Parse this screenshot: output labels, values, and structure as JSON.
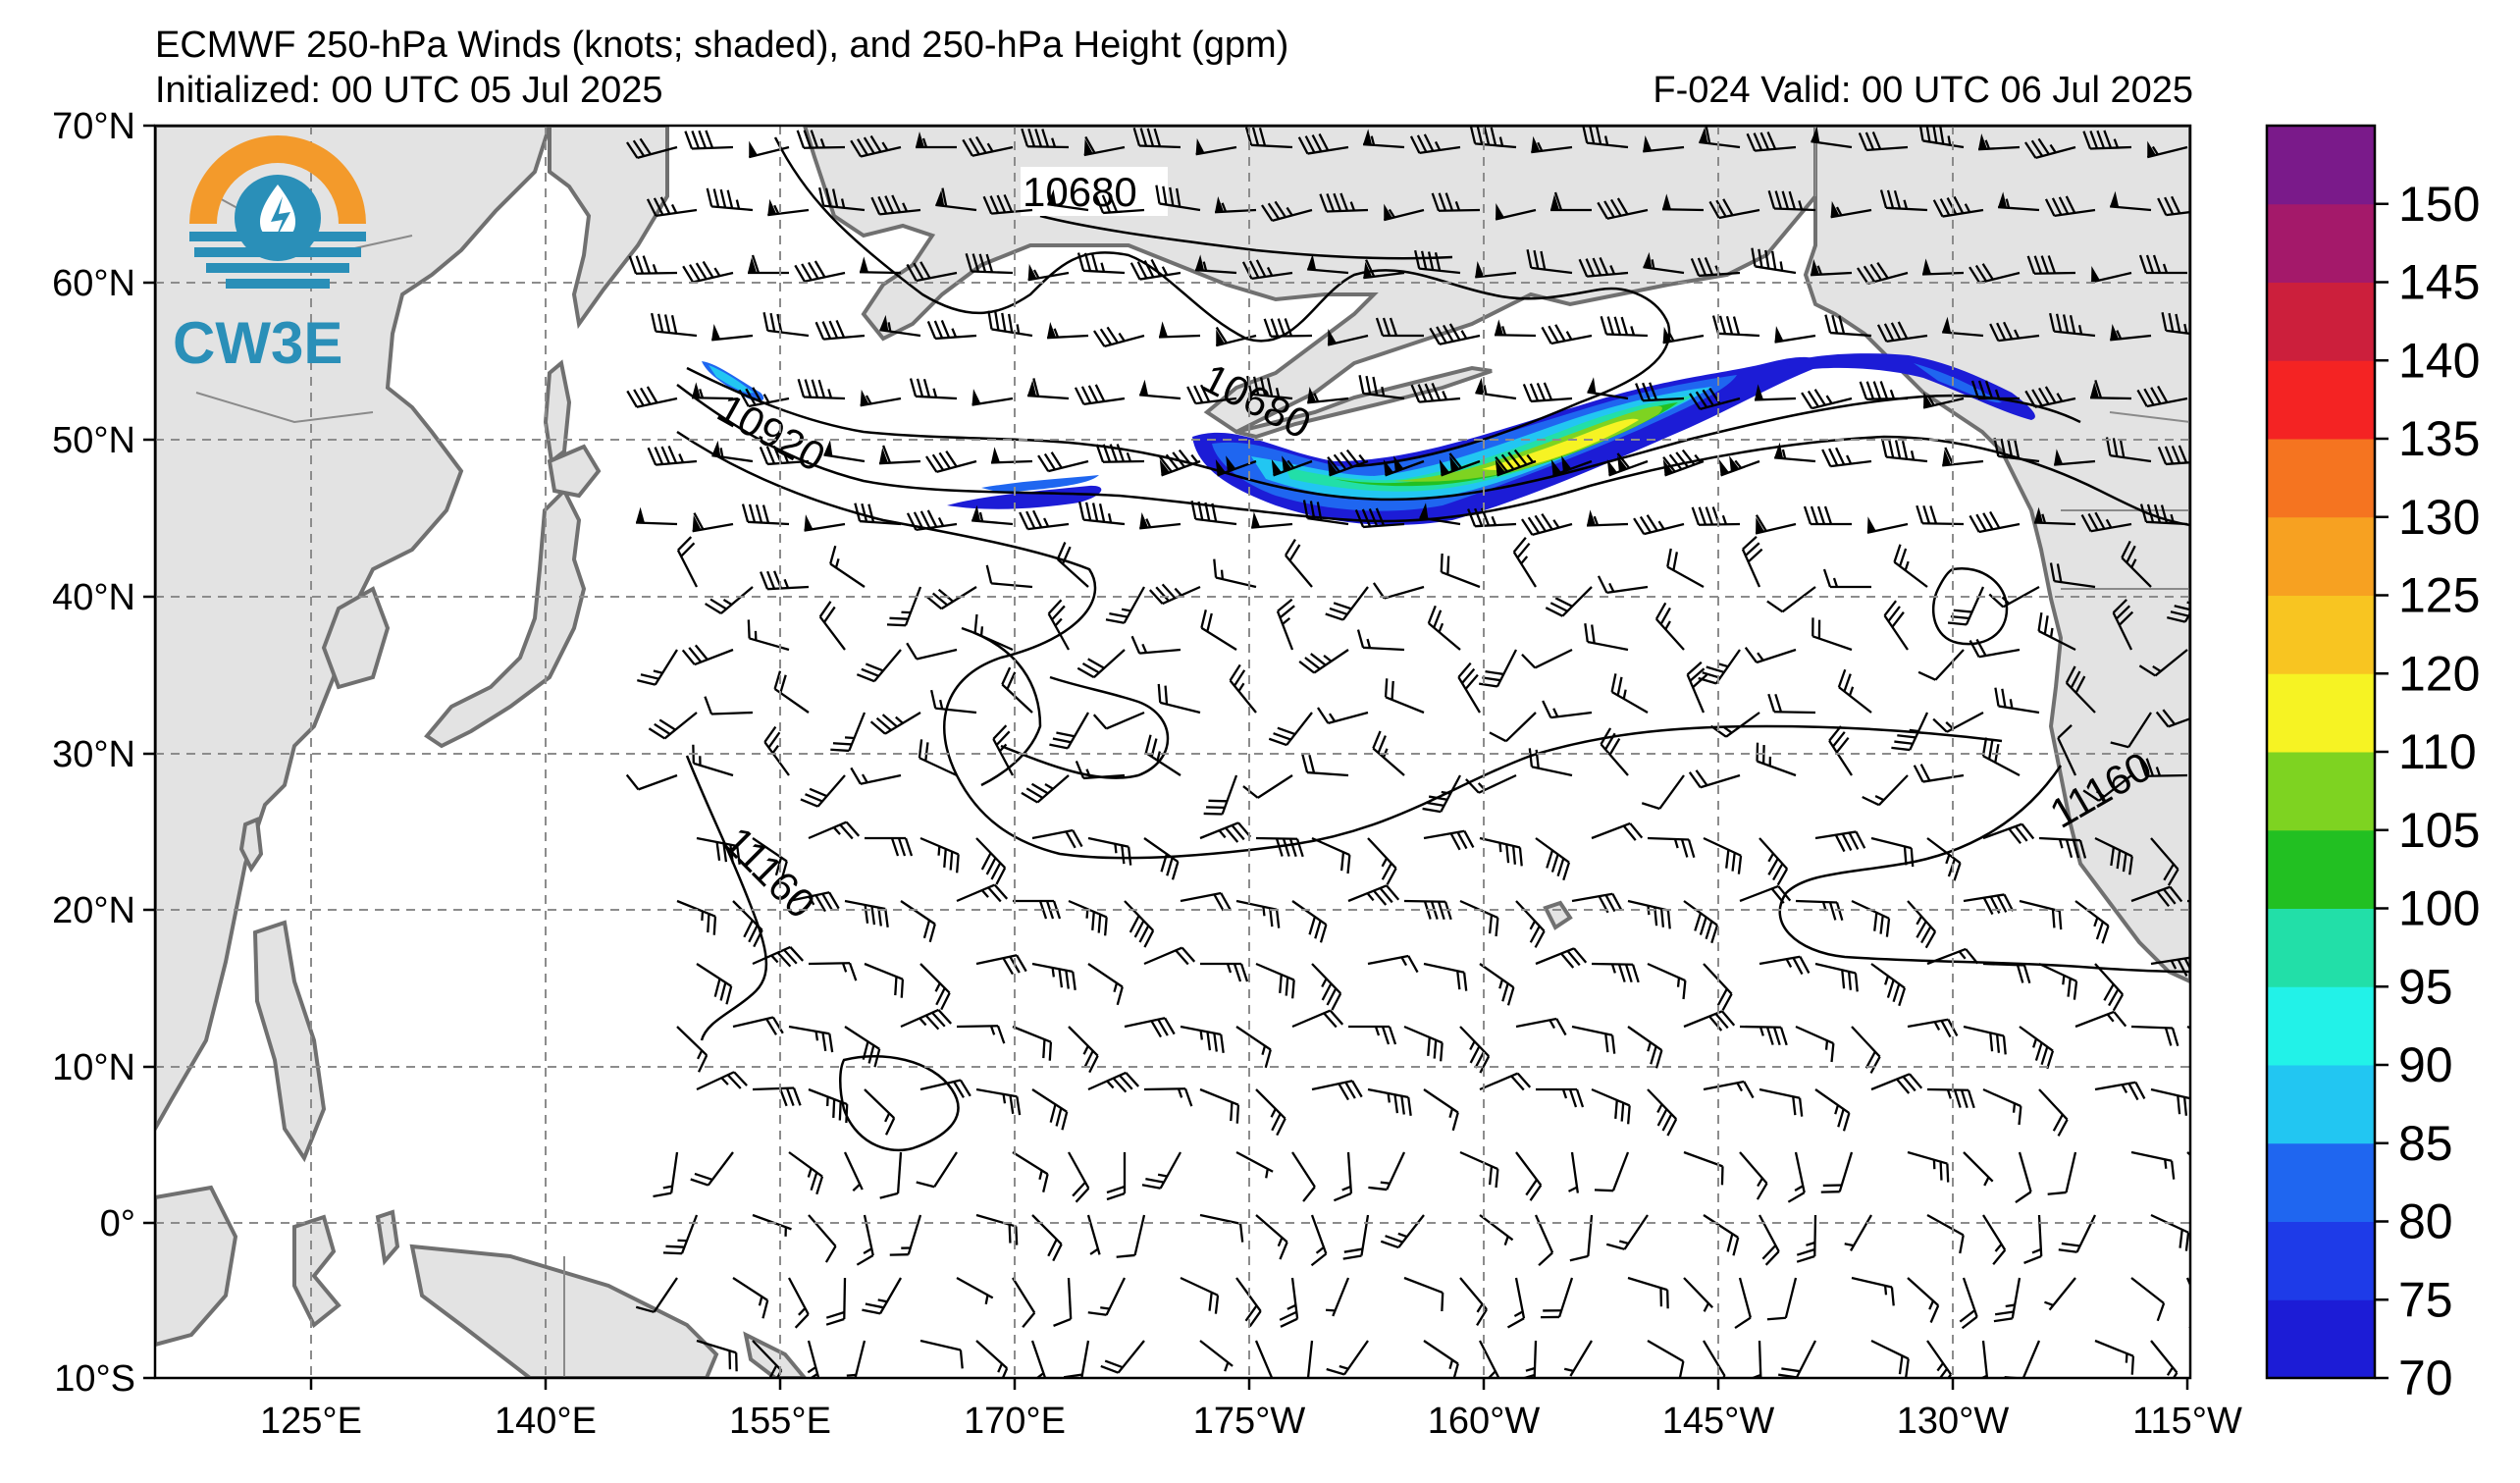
{
  "header": {
    "title": "ECMWF 250-hPa Winds (knots; shaded), and 250-hPa Height (gpm)",
    "initialized": "Initialized: 00 UTC 05 Jul 2025",
    "valid": "F-024  Valid: 00 UTC 06 Jul 2025"
  },
  "logo": {
    "text": "CW3E",
    "colors": [
      "#f39a2b",
      "#2a8fb8"
    ]
  },
  "axes": {
    "lat_labels": [
      "70°N",
      "60°N",
      "50°N",
      "40°N",
      "30°N",
      "20°N",
      "10°N",
      "0°",
      "10°S"
    ],
    "lon_labels": [
      "125°E",
      "140°E",
      "155°E",
      "170°E",
      "175°W",
      "160°W",
      "145°W",
      "130°W",
      "115°W"
    ]
  },
  "colorbar": {
    "labels": [
      "70",
      "75",
      "80",
      "85",
      "90",
      "95",
      "100",
      "105",
      "110",
      "120",
      "125",
      "130",
      "135",
      "140",
      "145",
      "150"
    ],
    "colors": [
      "#1c1cd6",
      "#1e3be8",
      "#1f66f0",
      "#22c6f2",
      "#22f2e8",
      "#22dfa8",
      "#22c022",
      "#7ed321",
      "#f6f323",
      "#f8c521",
      "#f7a121",
      "#f57420",
      "#f42323",
      "#cc1f3c",
      "#a4196a",
      "#7a1a8a"
    ]
  },
  "contour_labels": [
    "10680",
    "10680",
    "10920",
    "11160",
    "11160"
  ],
  "map": {
    "land_color": "#e3e3e3",
    "coast_color": "#707070",
    "ocean_color": "#ffffff",
    "jet_max_knots": "100-110"
  }
}
